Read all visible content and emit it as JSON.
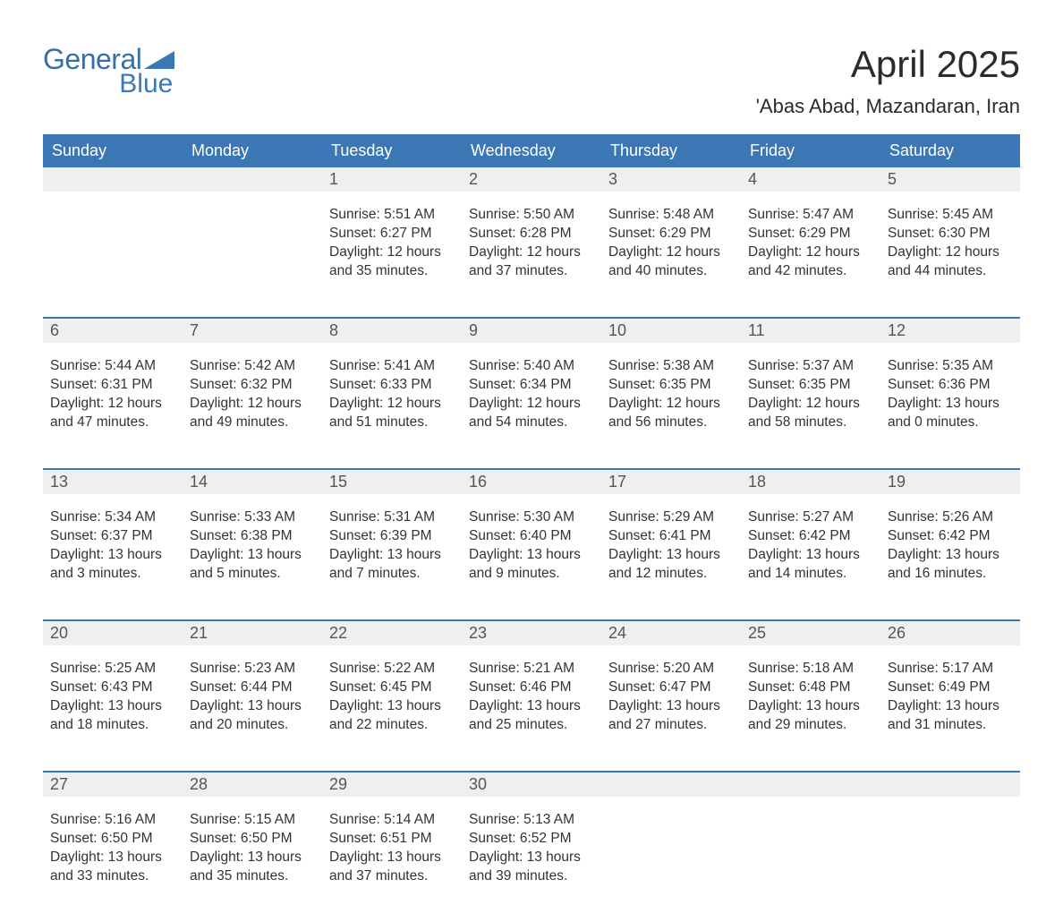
{
  "brand": {
    "general": "General",
    "blue": "Blue"
  },
  "title": "April 2025",
  "location": "'Abas Abad, Mazandaran, Iran",
  "colors": {
    "header_bg": "#3b77b5",
    "header_text": "#ffffff",
    "daynum_bg": "#efefef",
    "border": "#3b77b5",
    "logo_general": "#3a6fa5",
    "logo_blue": "#3a7ab8",
    "body_text": "#333333",
    "background": "#ffffff"
  },
  "typography": {
    "title_fontsize": 42,
    "location_fontsize": 22,
    "weekday_fontsize": 18,
    "daynum_fontsize": 18,
    "body_fontsize": 15.5,
    "font_family": "Arial"
  },
  "layout": {
    "columns": 7,
    "rows": 5
  },
  "weekdays": [
    "Sunday",
    "Monday",
    "Tuesday",
    "Wednesday",
    "Thursday",
    "Friday",
    "Saturday"
  ],
  "weeks": [
    [
      {
        "num": "",
        "sunrise": "",
        "sunset": "",
        "daylight": ""
      },
      {
        "num": "",
        "sunrise": "",
        "sunset": "",
        "daylight": ""
      },
      {
        "num": "1",
        "sunrise": "Sunrise: 5:51 AM",
        "sunset": "Sunset: 6:27 PM",
        "daylight": "Daylight: 12 hours and 35 minutes."
      },
      {
        "num": "2",
        "sunrise": "Sunrise: 5:50 AM",
        "sunset": "Sunset: 6:28 PM",
        "daylight": "Daylight: 12 hours and 37 minutes."
      },
      {
        "num": "3",
        "sunrise": "Sunrise: 5:48 AM",
        "sunset": "Sunset: 6:29 PM",
        "daylight": "Daylight: 12 hours and 40 minutes."
      },
      {
        "num": "4",
        "sunrise": "Sunrise: 5:47 AM",
        "sunset": "Sunset: 6:29 PM",
        "daylight": "Daylight: 12 hours and 42 minutes."
      },
      {
        "num": "5",
        "sunrise": "Sunrise: 5:45 AM",
        "sunset": "Sunset: 6:30 PM",
        "daylight": "Daylight: 12 hours and 44 minutes."
      }
    ],
    [
      {
        "num": "6",
        "sunrise": "Sunrise: 5:44 AM",
        "sunset": "Sunset: 6:31 PM",
        "daylight": "Daylight: 12 hours and 47 minutes."
      },
      {
        "num": "7",
        "sunrise": "Sunrise: 5:42 AM",
        "sunset": "Sunset: 6:32 PM",
        "daylight": "Daylight: 12 hours and 49 minutes."
      },
      {
        "num": "8",
        "sunrise": "Sunrise: 5:41 AM",
        "sunset": "Sunset: 6:33 PM",
        "daylight": "Daylight: 12 hours and 51 minutes."
      },
      {
        "num": "9",
        "sunrise": "Sunrise: 5:40 AM",
        "sunset": "Sunset: 6:34 PM",
        "daylight": "Daylight: 12 hours and 54 minutes."
      },
      {
        "num": "10",
        "sunrise": "Sunrise: 5:38 AM",
        "sunset": "Sunset: 6:35 PM",
        "daylight": "Daylight: 12 hours and 56 minutes."
      },
      {
        "num": "11",
        "sunrise": "Sunrise: 5:37 AM",
        "sunset": "Sunset: 6:35 PM",
        "daylight": "Daylight: 12 hours and 58 minutes."
      },
      {
        "num": "12",
        "sunrise": "Sunrise: 5:35 AM",
        "sunset": "Sunset: 6:36 PM",
        "daylight": "Daylight: 13 hours and 0 minutes."
      }
    ],
    [
      {
        "num": "13",
        "sunrise": "Sunrise: 5:34 AM",
        "sunset": "Sunset: 6:37 PM",
        "daylight": "Daylight: 13 hours and 3 minutes."
      },
      {
        "num": "14",
        "sunrise": "Sunrise: 5:33 AM",
        "sunset": "Sunset: 6:38 PM",
        "daylight": "Daylight: 13 hours and 5 minutes."
      },
      {
        "num": "15",
        "sunrise": "Sunrise: 5:31 AM",
        "sunset": "Sunset: 6:39 PM",
        "daylight": "Daylight: 13 hours and 7 minutes."
      },
      {
        "num": "16",
        "sunrise": "Sunrise: 5:30 AM",
        "sunset": "Sunset: 6:40 PM",
        "daylight": "Daylight: 13 hours and 9 minutes."
      },
      {
        "num": "17",
        "sunrise": "Sunrise: 5:29 AM",
        "sunset": "Sunset: 6:41 PM",
        "daylight": "Daylight: 13 hours and 12 minutes."
      },
      {
        "num": "18",
        "sunrise": "Sunrise: 5:27 AM",
        "sunset": "Sunset: 6:42 PM",
        "daylight": "Daylight: 13 hours and 14 minutes."
      },
      {
        "num": "19",
        "sunrise": "Sunrise: 5:26 AM",
        "sunset": "Sunset: 6:42 PM",
        "daylight": "Daylight: 13 hours and 16 minutes."
      }
    ],
    [
      {
        "num": "20",
        "sunrise": "Sunrise: 5:25 AM",
        "sunset": "Sunset: 6:43 PM",
        "daylight": "Daylight: 13 hours and 18 minutes."
      },
      {
        "num": "21",
        "sunrise": "Sunrise: 5:23 AM",
        "sunset": "Sunset: 6:44 PM",
        "daylight": "Daylight: 13 hours and 20 minutes."
      },
      {
        "num": "22",
        "sunrise": "Sunrise: 5:22 AM",
        "sunset": "Sunset: 6:45 PM",
        "daylight": "Daylight: 13 hours and 22 minutes."
      },
      {
        "num": "23",
        "sunrise": "Sunrise: 5:21 AM",
        "sunset": "Sunset: 6:46 PM",
        "daylight": "Daylight: 13 hours and 25 minutes."
      },
      {
        "num": "24",
        "sunrise": "Sunrise: 5:20 AM",
        "sunset": "Sunset: 6:47 PM",
        "daylight": "Daylight: 13 hours and 27 minutes."
      },
      {
        "num": "25",
        "sunrise": "Sunrise: 5:18 AM",
        "sunset": "Sunset: 6:48 PM",
        "daylight": "Daylight: 13 hours and 29 minutes."
      },
      {
        "num": "26",
        "sunrise": "Sunrise: 5:17 AM",
        "sunset": "Sunset: 6:49 PM",
        "daylight": "Daylight: 13 hours and 31 minutes."
      }
    ],
    [
      {
        "num": "27",
        "sunrise": "Sunrise: 5:16 AM",
        "sunset": "Sunset: 6:50 PM",
        "daylight": "Daylight: 13 hours and 33 minutes."
      },
      {
        "num": "28",
        "sunrise": "Sunrise: 5:15 AM",
        "sunset": "Sunset: 6:50 PM",
        "daylight": "Daylight: 13 hours and 35 minutes."
      },
      {
        "num": "29",
        "sunrise": "Sunrise: 5:14 AM",
        "sunset": "Sunset: 6:51 PM",
        "daylight": "Daylight: 13 hours and 37 minutes."
      },
      {
        "num": "30",
        "sunrise": "Sunrise: 5:13 AM",
        "sunset": "Sunset: 6:52 PM",
        "daylight": "Daylight: 13 hours and 39 minutes."
      },
      {
        "num": "",
        "sunrise": "",
        "sunset": "",
        "daylight": ""
      },
      {
        "num": "",
        "sunrise": "",
        "sunset": "",
        "daylight": ""
      },
      {
        "num": "",
        "sunrise": "",
        "sunset": "",
        "daylight": ""
      }
    ]
  ]
}
